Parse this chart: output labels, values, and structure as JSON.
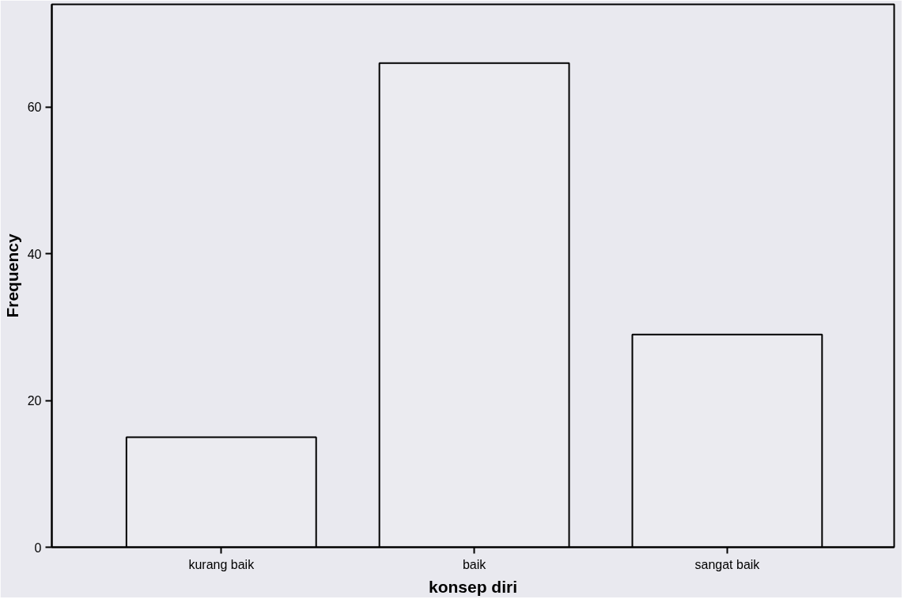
{
  "chart_data": {
    "type": "bar",
    "xlabel": "konsep diri",
    "ylabel": "Frequency",
    "categories": [
      "kurang baik",
      "baik",
      "sangat baik"
    ],
    "values": [
      15,
      66,
      29
    ],
    "color": "#ebebf0",
    "ylim": [
      0,
      74
    ],
    "yticks": [
      0,
      20,
      40,
      60
    ],
    "grid": false
  }
}
